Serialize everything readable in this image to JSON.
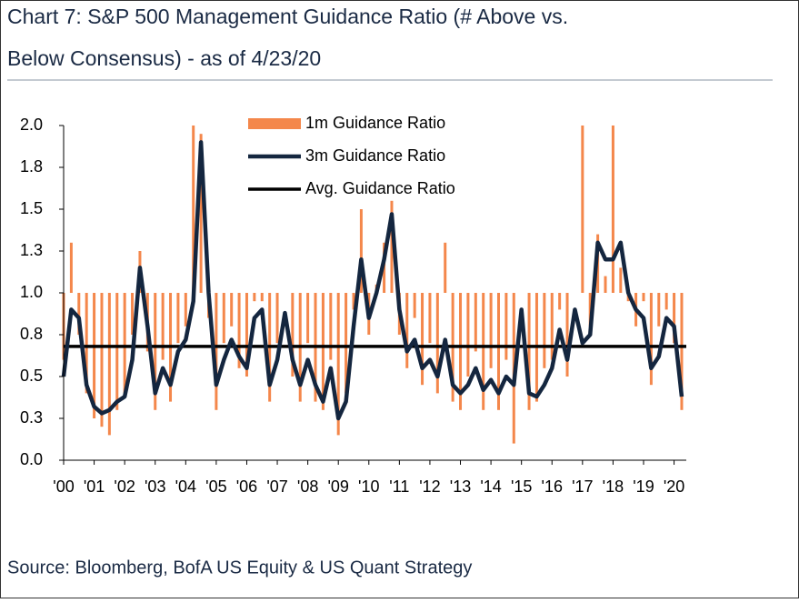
{
  "chart_data": {
    "type": "bar_line",
    "title_line1": "Chart 7: S&P 500 Management Guidance Ratio (# Above vs.",
    "title_line2": "Below Consensus) - as of 4/23/20",
    "source": "Source: Bloomberg, BofA US Equity & US Quant Strategy",
    "x": [
      2000,
      2000.25,
      2000.5,
      2000.75,
      2001,
      2001.25,
      2001.5,
      2001.75,
      2002,
      2002.25,
      2002.5,
      2002.75,
      2003,
      2003.25,
      2003.5,
      2003.75,
      2004,
      2004.25,
      2004.5,
      2004.75,
      2005,
      2005.25,
      2005.5,
      2005.75,
      2006,
      2006.25,
      2006.5,
      2006.75,
      2007,
      2007.25,
      2007.5,
      2007.75,
      2008,
      2008.25,
      2008.5,
      2008.75,
      2009,
      2009.25,
      2009.5,
      2009.75,
      2010,
      2010.25,
      2010.5,
      2010.75,
      2011,
      2011.25,
      2011.5,
      2011.75,
      2012,
      2012.25,
      2012.5,
      2012.75,
      2013,
      2013.25,
      2013.5,
      2013.75,
      2014,
      2014.25,
      2014.5,
      2014.75,
      2015,
      2015.25,
      2015.5,
      2015.75,
      2016,
      2016.25,
      2016.5,
      2016.75,
      2017,
      2017.25,
      2017.5,
      2017.75,
      2018,
      2018.25,
      2018.5,
      2018.75,
      2019,
      2019.25,
      2019.5,
      2019.75,
      2020,
      2020.25
    ],
    "bar_baseline": 1,
    "series": [
      {
        "name": "1m Guidance Ratio",
        "color": "#f4874b",
        "kind": "bar",
        "values": [
          0.6,
          1.3,
          0.75,
          0.4,
          0.25,
          0.2,
          0.15,
          0.3,
          0.4,
          0.75,
          1.25,
          0.65,
          0.3,
          0.6,
          0.35,
          0.7,
          0.8,
          2.0,
          1.95,
          0.85,
          0.3,
          0.7,
          0.8,
          0.55,
          0.5,
          0.95,
          0.95,
          0.35,
          0.7,
          1.0,
          0.5,
          0.35,
          0.7,
          0.35,
          0.3,
          0.6,
          0.15,
          0.4,
          0.9,
          1.5,
          0.75,
          1.05,
          1.3,
          1.55,
          0.75,
          0.55,
          0.85,
          0.45,
          0.7,
          0.4,
          1.3,
          0.35,
          0.3,
          0.5,
          0.65,
          0.3,
          0.55,
          0.3,
          0.6,
          0.1,
          1.0,
          0.3,
          0.35,
          0.55,
          0.6,
          0.9,
          0.5,
          1.0,
          2.0,
          0.8,
          1.35,
          1.1,
          2.0,
          1.15,
          0.95,
          0.8,
          0.95,
          0.45,
          0.8,
          0.9,
          0.7,
          0.3
        ]
      },
      {
        "name": "3m Guidance Ratio",
        "color": "#14263f",
        "kind": "line",
        "values": [
          0.5,
          0.9,
          0.85,
          0.45,
          0.32,
          0.28,
          0.3,
          0.35,
          0.38,
          0.6,
          1.15,
          0.8,
          0.4,
          0.55,
          0.45,
          0.65,
          0.72,
          0.95,
          1.9,
          1.0,
          0.45,
          0.6,
          0.72,
          0.62,
          0.55,
          0.85,
          0.9,
          0.45,
          0.6,
          0.88,
          0.6,
          0.45,
          0.6,
          0.45,
          0.35,
          0.55,
          0.25,
          0.35,
          0.8,
          1.2,
          0.85,
          1.0,
          1.2,
          1.47,
          0.9,
          0.65,
          0.72,
          0.55,
          0.6,
          0.5,
          0.72,
          0.45,
          0.4,
          0.45,
          0.55,
          0.42,
          0.48,
          0.4,
          0.5,
          0.45,
          0.9,
          0.4,
          0.38,
          0.45,
          0.55,
          0.78,
          0.6,
          0.9,
          0.7,
          0.75,
          1.3,
          1.2,
          1.2,
          1.3,
          1.0,
          0.9,
          0.85,
          0.55,
          0.62,
          0.85,
          0.8,
          0.38
        ]
      }
    ],
    "reference_line": {
      "name": "Avg. Guidance Ratio",
      "color": "#000000",
      "value": 0.68
    },
    "xlim": [
      2000,
      2020.4
    ],
    "xticks": [
      {
        "value": 2000,
        "label": "'00"
      },
      {
        "value": 2001,
        "label": "'01"
      },
      {
        "value": 2002,
        "label": "'02"
      },
      {
        "value": 2003,
        "label": "'03"
      },
      {
        "value": 2004,
        "label": "'04"
      },
      {
        "value": 2005,
        "label": "'05"
      },
      {
        "value": 2006,
        "label": "'06"
      },
      {
        "value": 2007,
        "label": "'07"
      },
      {
        "value": 2008,
        "label": "'08"
      },
      {
        "value": 2009,
        "label": "'09"
      },
      {
        "value": 2010,
        "label": "'10"
      },
      {
        "value": 2011,
        "label": "'11"
      },
      {
        "value": 2012,
        "label": "'12"
      },
      {
        "value": 2013,
        "label": "'13"
      },
      {
        "value": 2014,
        "label": "'14"
      },
      {
        "value": 2015,
        "label": "'15"
      },
      {
        "value": 2016,
        "label": "'16"
      },
      {
        "value": 2017,
        "label": "'17"
      },
      {
        "value": 2018,
        "label": "'18"
      },
      {
        "value": 2019,
        "label": "'19"
      },
      {
        "value": 2020,
        "label": "'20"
      }
    ],
    "ylim": [
      0,
      2
    ],
    "yticks": [
      {
        "value": 0,
        "label": "0.0"
      },
      {
        "value": 0.25,
        "label": "0.3"
      },
      0.5,
      {
        "value": 0.75,
        "label": "0.8"
      },
      {
        "value": 1,
        "label": "1.0"
      },
      {
        "value": 1.25,
        "label": "1.3"
      },
      1.5,
      {
        "value": 1.75,
        "label": "1.8"
      },
      {
        "value": 2,
        "label": "2.0"
      }
    ],
    "legend": "top"
  }
}
